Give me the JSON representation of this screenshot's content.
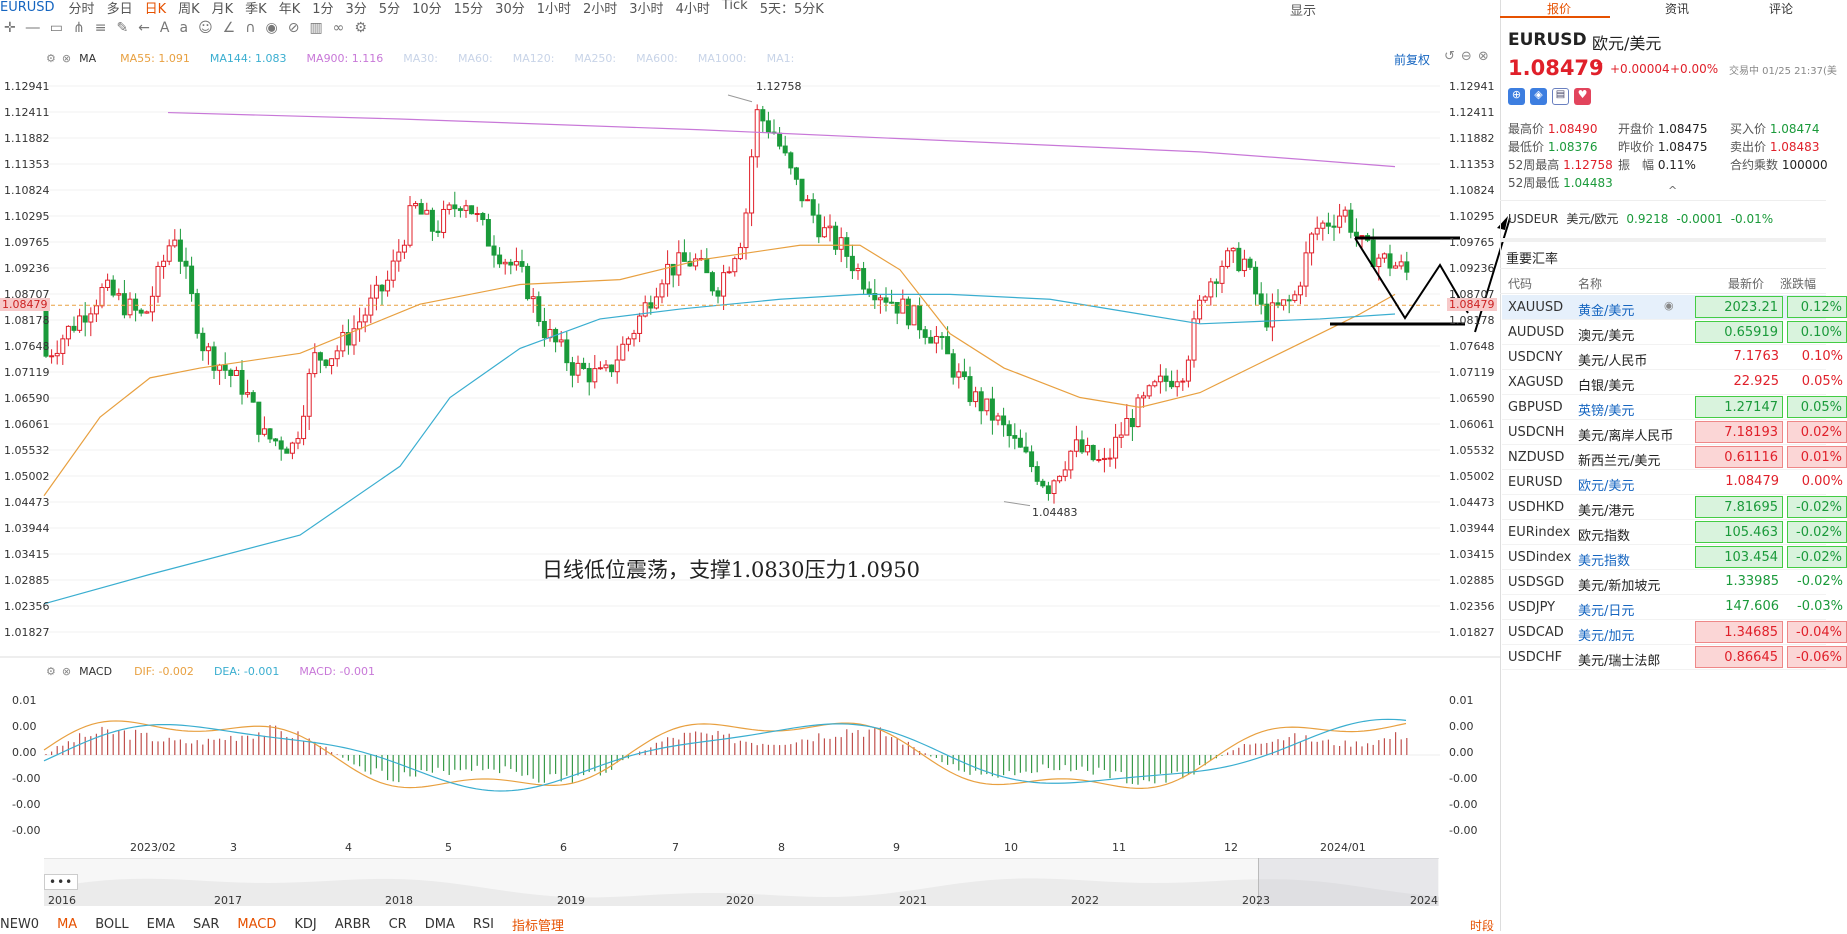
{
  "toolbar": {
    "symbol": "EURUSD",
    "periods": [
      "分时",
      "多日",
      "日K",
      "周K",
      "月K",
      "季K",
      "年K",
      "1分",
      "3分",
      "5分",
      "10分",
      "15分",
      "30分",
      "1小时",
      "2小时",
      "3小时",
      "4小时",
      "Tick",
      "5天：5分K"
    ],
    "active_period": "日K",
    "display": "显示"
  },
  "ma_row": {
    "ma": "MA",
    "ma55": "MA55: 1.091",
    "ma144": "MA144: 1.083",
    "ma900": "MA900: 1.116",
    "others": [
      "MA30:",
      "MA60:",
      "MA120:",
      "MA250:",
      "MA600:",
      "MA1000:",
      "MA1:"
    ],
    "fuquan": "前复权"
  },
  "price_axis": [
    "1.12941",
    "1.12411",
    "1.11882",
    "1.11353",
    "1.10824",
    "1.10295",
    "1.09765",
    "1.09236",
    "1.08707",
    "1.08178",
    "1.07648",
    "1.07119",
    "1.06590",
    "1.06061",
    "1.05532",
    "1.05002",
    "1.04473",
    "1.03944",
    "1.03415",
    "1.02885",
    "1.02356",
    "1.01827"
  ],
  "current_price_tag": "1.08479",
  "high_label": "1.12758",
  "low_label": "1.04483",
  "annotation": "日线低位震荡，支撑1.0830压力1.0950",
  "macd_row": {
    "macd": "MACD",
    "dif": "DIF: -0.002",
    "dea": "DEA: -0.001",
    "macd_val": "MACD: -0.001"
  },
  "macd_axis": [
    "0.01",
    "0.00",
    "0.00",
    "-0.00",
    "-0.00",
    "-0.00"
  ],
  "x_months": [
    "2023/02",
    "3",
    "4",
    "5",
    "6",
    "7",
    "8",
    "9",
    "10",
    "11",
    "12",
    "2024/01"
  ],
  "x_years": [
    "2016",
    "2017",
    "2018",
    "2019",
    "2020",
    "2021",
    "2022",
    "2023",
    "2024"
  ],
  "indicators": [
    "NEW0",
    "MA",
    "BOLL",
    "EMA",
    "SAR",
    "MACD",
    "KDJ",
    "ARBR",
    "CR",
    "DMA",
    "RSI",
    "指标管理"
  ],
  "bottom_right": "时段",
  "panel_tabs": [
    "报价",
    "资讯",
    "评论"
  ],
  "quote": {
    "code": "EURUSD",
    "name": "欧元/美元",
    "price": "1.08479",
    "change": "+0.00004",
    "pct": "+0.00%",
    "status": "交易中 01/25 21:37(美"
  },
  "stats": [
    {
      "l": "最高价",
      "v": "1.08490",
      "c": "up"
    },
    {
      "l": "开盘价",
      "v": "1.08475",
      "c": "n"
    },
    {
      "l": "买入价",
      "v": "1.08474",
      "c": "dn"
    },
    {
      "l": "最低价",
      "v": "1.08376",
      "c": "dn"
    },
    {
      "l": "昨收价",
      "v": "1.08475",
      "c": "n"
    },
    {
      "l": "卖出价",
      "v": "1.08483",
      "c": "up"
    },
    {
      "l": "52周最高",
      "v": "1.12758",
      "c": "up"
    },
    {
      "l": "振　幅",
      "v": "0.11%",
      "c": "n"
    },
    {
      "l": "合约乘数",
      "v": "100000",
      "c": "n"
    },
    {
      "l": "52周最低",
      "v": "1.04483",
      "c": "dn"
    }
  ],
  "related": {
    "code": "USDEUR",
    "name": "美元/欧元",
    "price": "0.9218",
    "chg": "-0.0001",
    "pct": "-0.01%"
  },
  "rates_title": "重要汇率",
  "rates_header": [
    "代码",
    "名称",
    "最新价",
    "涨跌幅"
  ],
  "rates": [
    {
      "code": "XAUUSD",
      "name": "黄金/美元",
      "price": "2023.21",
      "pct": "0.12%",
      "dir": "dn",
      "box": true,
      "hl": true,
      "link": true
    },
    {
      "code": "AUDUSD",
      "name": "澳元/美元",
      "price": "0.65919",
      "pct": "0.10%",
      "dir": "dn",
      "box": true,
      "link": false
    },
    {
      "code": "USDCNY",
      "name": "美元/人民币",
      "price": "7.1763",
      "pct": "0.10%",
      "dir": "up",
      "box": false,
      "link": false
    },
    {
      "code": "XAGUSD",
      "name": "白银/美元",
      "price": "22.925",
      "pct": "0.05%",
      "dir": "up",
      "box": false,
      "link": false
    },
    {
      "code": "GBPUSD",
      "name": "英镑/美元",
      "price": "1.27147",
      "pct": "0.05%",
      "dir": "dn",
      "box": true,
      "link": true
    },
    {
      "code": "USDCNH",
      "name": "美元/离岸人民币",
      "price": "7.18193",
      "pct": "0.02%",
      "dir": "up",
      "box": true,
      "link": false
    },
    {
      "code": "NZDUSD",
      "name": "新西兰元/美元",
      "price": "0.61116",
      "pct": "0.01%",
      "dir": "up",
      "box": true,
      "link": false
    },
    {
      "code": "EURUSD",
      "name": "欧元/美元",
      "price": "1.08479",
      "pct": "0.00%",
      "dir": "up",
      "box": false,
      "link": true
    },
    {
      "code": "USDHKD",
      "name": "美元/港元",
      "price": "7.81695",
      "pct": "-0.02%",
      "dir": "dn",
      "box": true,
      "link": false
    },
    {
      "code": "EURindex",
      "name": "欧元指数",
      "price": "105.463",
      "pct": "-0.02%",
      "dir": "dn",
      "box": true,
      "link": false
    },
    {
      "code": "USDindex",
      "name": "美元指数",
      "price": "103.454",
      "pct": "-0.02%",
      "dir": "dn",
      "box": true,
      "link": true
    },
    {
      "code": "USDSGD",
      "name": "美元/新加坡元",
      "price": "1.33985",
      "pct": "-0.02%",
      "dir": "dn",
      "box": false,
      "link": false
    },
    {
      "code": "USDJPY",
      "name": "美元/日元",
      "price": "147.606",
      "pct": "-0.03%",
      "dir": "dn",
      "box": false,
      "link": true
    },
    {
      "code": "USDCAD",
      "name": "美元/加元",
      "price": "1.34685",
      "pct": "-0.04%",
      "dir": "up",
      "box": true,
      "link": true
    },
    {
      "code": "USDCHF",
      "name": "美元/瑞士法郎",
      "price": "0.86645",
      "pct": "-0.06%",
      "dir": "up",
      "box": true,
      "link": false
    }
  ],
  "colors": {
    "up": "#e0202a",
    "down": "#1a9a3a",
    "ma55": "#e8a040",
    "ma144": "#3aaed0",
    "ma900": "#c878d8",
    "link": "#1565c0"
  }
}
